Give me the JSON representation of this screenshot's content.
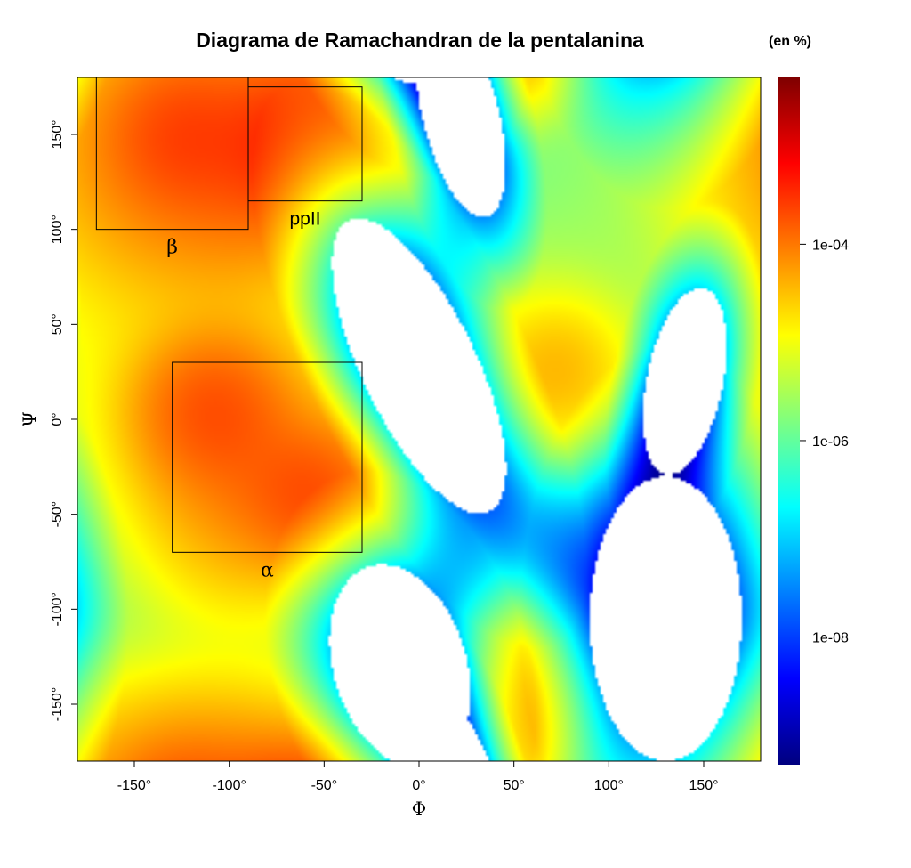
{
  "chart_data": {
    "type": "heatmap",
    "title": "Diagrama de Ramachandran de la pentalanina",
    "colorbar_unit_label": "(en %)",
    "xlabel": "Φ",
    "ylabel": "Ψ",
    "xlim": [
      -180,
      180
    ],
    "ylim": [
      -180,
      180
    ],
    "x_ticks": [
      -150,
      -100,
      -50,
      0,
      50,
      100,
      150
    ],
    "y_ticks": [
      -150,
      -100,
      -50,
      0,
      50,
      100,
      150
    ],
    "x_tick_labels": [
      "-150°",
      "-100°",
      "-50°",
      "0°",
      "50°",
      "100°",
      "150°"
    ],
    "y_tick_labels": [
      "-150°",
      "-100°",
      "-50°",
      "0°",
      "50°",
      "100°",
      "150°"
    ],
    "colorbar": {
      "scale": "log",
      "range": [
        5e-10,
        0.005
      ],
      "ticks": [
        1e-08,
        1e-06,
        0.0001
      ],
      "tick_labels": [
        "1e-08",
        "1e-06",
        "1e-04"
      ],
      "colors": [
        "#00007f",
        "#0000ff",
        "#007fff",
        "#00ffff",
        "#7fff7f",
        "#ffff00",
        "#ff7f00",
        "#ff0000",
        "#7f0000"
      ]
    },
    "regions": [
      {
        "label": "β",
        "phi": [
          -170,
          -90
        ],
        "psi": [
          100,
          180
        ]
      },
      {
        "label": "ppII",
        "phi": [
          -90,
          -30
        ],
        "psi": [
          115,
          175
        ]
      },
      {
        "label": "α",
        "phi": [
          -130,
          -30
        ],
        "psi": [
          -70,
          30
        ]
      }
    ],
    "density_features": {
      "peaks": [
        {
          "phi": -62,
          "psi": 145,
          "log10": -3.5
        },
        {
          "phi": -125,
          "psi": 150,
          "log10": -3.9
        },
        {
          "phi": -110,
          "psi": 5,
          "log10": -3.9
        },
        {
          "phi": -55,
          "psi": -40,
          "log10": -3.8
        },
        {
          "phi": 72,
          "psi": 25,
          "log10": -4.5
        },
        {
          "phi": 50,
          "psi": -155,
          "log10": -4.6
        }
      ],
      "empty_regions": [
        {
          "phi": 0,
          "psi": 28
        },
        {
          "phi": 22,
          "psi": 160
        },
        {
          "phi": -10,
          "psi": -130
        },
        {
          "phi": 130,
          "psi": -105
        },
        {
          "phi": 140,
          "psi": 20
        }
      ]
    }
  }
}
